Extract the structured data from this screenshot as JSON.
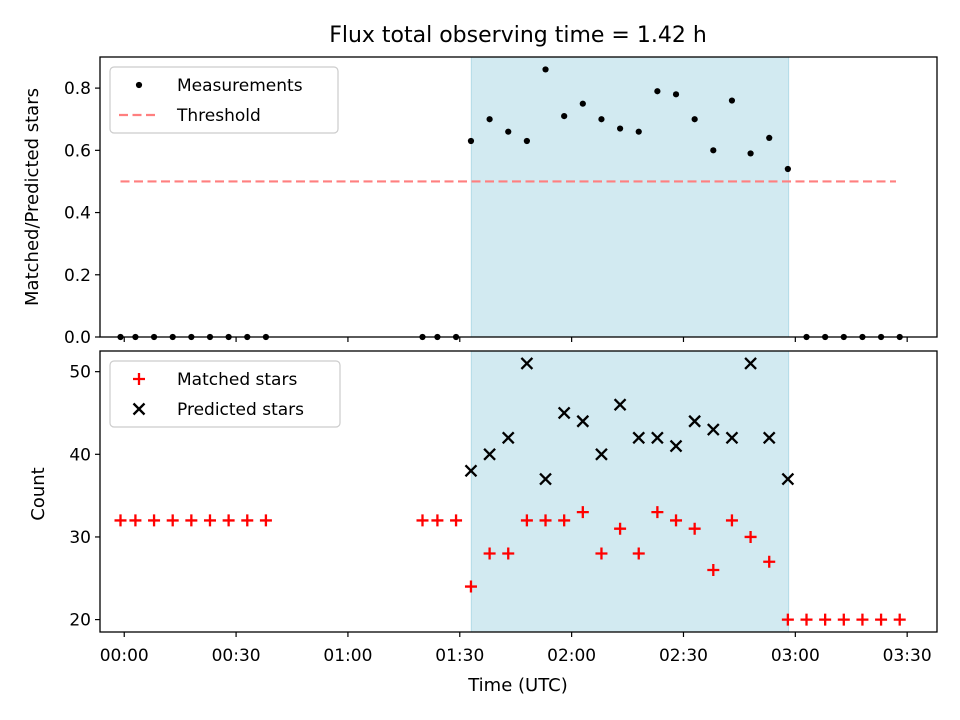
{
  "figure": {
    "title": "Flux total observing time = 1.42 h"
  },
  "chart_data": [
    {
      "type": "scatter",
      "panel": "top",
      "ylabel": "Matched/Predicted stars",
      "xlabel": "",
      "xlim": [
        -6.5,
        218
      ],
      "ylim": [
        0,
        0.9
      ],
      "yticks": [
        0.0,
        0.2,
        0.4,
        0.6,
        0.8
      ],
      "ytick_labels": [
        "0.0",
        "0.2",
        "0.4",
        "0.6",
        "0.8"
      ],
      "xticks": [
        0,
        30,
        60,
        90,
        120,
        150,
        180,
        210
      ],
      "xtick_labels": [
        "00:00",
        "00:30",
        "01:00",
        "01:30",
        "02:00",
        "02:30",
        "03:00",
        "03:30"
      ],
      "x_unit": "minutes after 00:00 UTC",
      "highlight": {
        "x_start": 93.1,
        "x_end": 178.2,
        "color": "#add8e6"
      },
      "legend": {
        "position": "upper left",
        "entries": [
          "Measurements",
          "Threshold"
        ]
      },
      "series": [
        {
          "name": "Measurements",
          "marker": "dot",
          "color": "#000000",
          "x": [
            -1,
            3,
            8,
            13,
            18,
            23,
            28,
            33,
            38,
            80,
            84,
            89,
            93,
            98,
            103,
            108,
            113,
            118,
            123,
            128,
            133,
            138,
            143,
            148,
            153,
            158,
            163,
            168,
            173,
            178,
            183,
            188,
            193,
            198,
            203,
            208
          ],
          "y": [
            0,
            0,
            0,
            0,
            0,
            0,
            0,
            0,
            0,
            0,
            0,
            0,
            0.63,
            0.7,
            0.66,
            0.63,
            0.86,
            0.71,
            0.75,
            0.7,
            0.67,
            0.66,
            0.79,
            0.78,
            0.7,
            0.6,
            0.76,
            0.59,
            0.64,
            0.54,
            0,
            0,
            0,
            0,
            0,
            0
          ]
        },
        {
          "name": "Threshold",
          "style": "dashed",
          "color": "#ff7f7f",
          "x": [
            -1,
            207
          ],
          "y": [
            0.5,
            0.5
          ]
        }
      ]
    },
    {
      "type": "scatter",
      "panel": "bottom",
      "xlabel": "Time (UTC)",
      "ylabel": "Count",
      "xlim": [
        -6.5,
        218
      ],
      "ylim": [
        18.5,
        52.5
      ],
      "yticks": [
        20,
        30,
        40,
        50
      ],
      "ytick_labels": [
        "20",
        "30",
        "40",
        "50"
      ],
      "xticks": [
        0,
        30,
        60,
        90,
        120,
        150,
        180,
        210
      ],
      "xtick_labels": [
        "00:00",
        "00:30",
        "01:00",
        "01:30",
        "02:00",
        "02:30",
        "03:00",
        "03:30"
      ],
      "x_unit": "minutes after 00:00 UTC",
      "highlight": {
        "x_start": 93.1,
        "x_end": 178.2,
        "color": "#add8e6"
      },
      "legend": {
        "position": "upper left",
        "entries": [
          "Matched stars",
          "Predicted stars"
        ]
      },
      "series": [
        {
          "name": "Matched stars",
          "marker": "plus",
          "color": "#ff0000",
          "x": [
            -1,
            3,
            8,
            13,
            18,
            23,
            28,
            33,
            38,
            80,
            84,
            89,
            93,
            98,
            103,
            108,
            113,
            118,
            123,
            128,
            133,
            138,
            143,
            148,
            153,
            158,
            163,
            168,
            173,
            178,
            183,
            188,
            193,
            198,
            203,
            208
          ],
          "y": [
            32,
            32,
            32,
            32,
            32,
            32,
            32,
            32,
            32,
            32,
            32,
            32,
            24,
            28,
            28,
            32,
            32,
            32,
            33,
            28,
            31,
            28,
            33,
            32,
            31,
            26,
            32,
            30,
            27,
            20,
            20,
            20,
            20,
            20,
            20,
            20
          ]
        },
        {
          "name": "Predicted stars",
          "marker": "x",
          "color": "#000000",
          "x": [
            93,
            98,
            103,
            108,
            113,
            118,
            123,
            128,
            133,
            138,
            143,
            148,
            153,
            158,
            163,
            168,
            173,
            178
          ],
          "y": [
            38,
            40,
            42,
            51,
            37,
            45,
            44,
            40,
            46,
            42,
            42,
            41,
            44,
            43,
            42,
            51,
            42,
            37
          ]
        }
      ]
    }
  ]
}
